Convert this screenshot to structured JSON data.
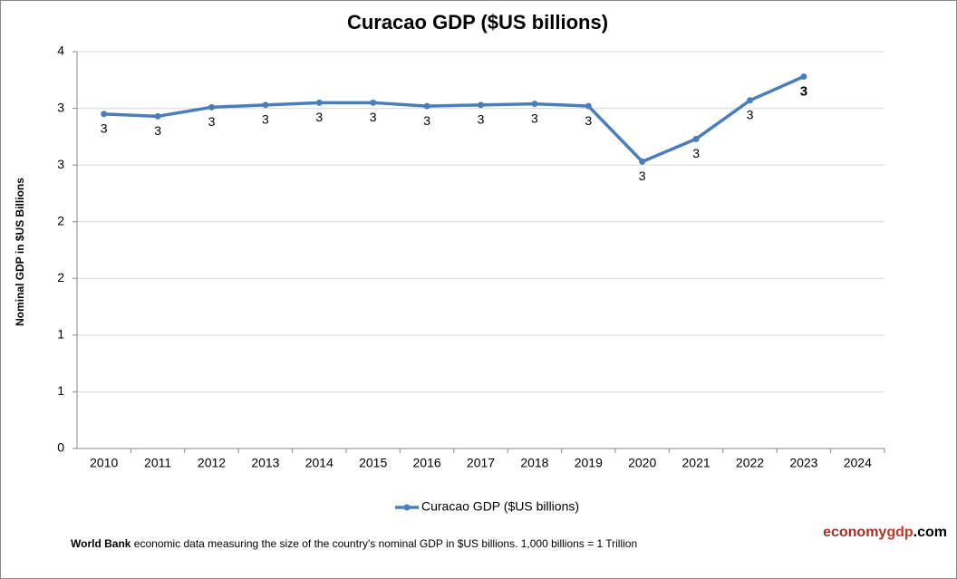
{
  "chart_data": {
    "type": "line",
    "title": "Curacao GDP ($US billions)",
    "y_label": "Nominal GDP in $US Billions",
    "categories": [
      "2010",
      "2011",
      "2012",
      "2013",
      "2014",
      "2015",
      "2016",
      "2017",
      "2018",
      "2019",
      "2020",
      "2021",
      "2022",
      "2023",
      "2024"
    ],
    "series": [
      {
        "name": "Curacao GDP ($US billions)",
        "color": "#4a7ebb",
        "values": [
          2.95,
          2.93,
          3.01,
          3.03,
          3.05,
          3.05,
          3.02,
          3.03,
          3.04,
          3.02,
          2.53,
          2.73,
          3.07,
          3.28,
          null
        ],
        "value_labels": [
          "3",
          "3",
          "3",
          "3",
          "3",
          "3",
          "3",
          "3",
          "3",
          "3",
          "3",
          "3",
          "3",
          "3",
          null
        ]
      }
    ],
    "ylim": [
      0,
      3.5
    ],
    "yticks": [
      0,
      {
        "value": 0.5,
        "label": "1"
      },
      1,
      {
        "value": 1.5,
        "label": "2"
      },
      2,
      {
        "value": 2.5,
        "label": "3"
      },
      3,
      {
        "value": 3.5,
        "label": "4"
      }
    ],
    "grid": true,
    "legend": "bottom"
  },
  "footer": {
    "source": "World Bank",
    "text": "economic data  measuring the size of the country's nominal GDP in $US billions. 1,000 billions = 1 Trillion"
  },
  "brand": {
    "part1": "economy",
    "part2": "gdp",
    "part3": ".com"
  }
}
